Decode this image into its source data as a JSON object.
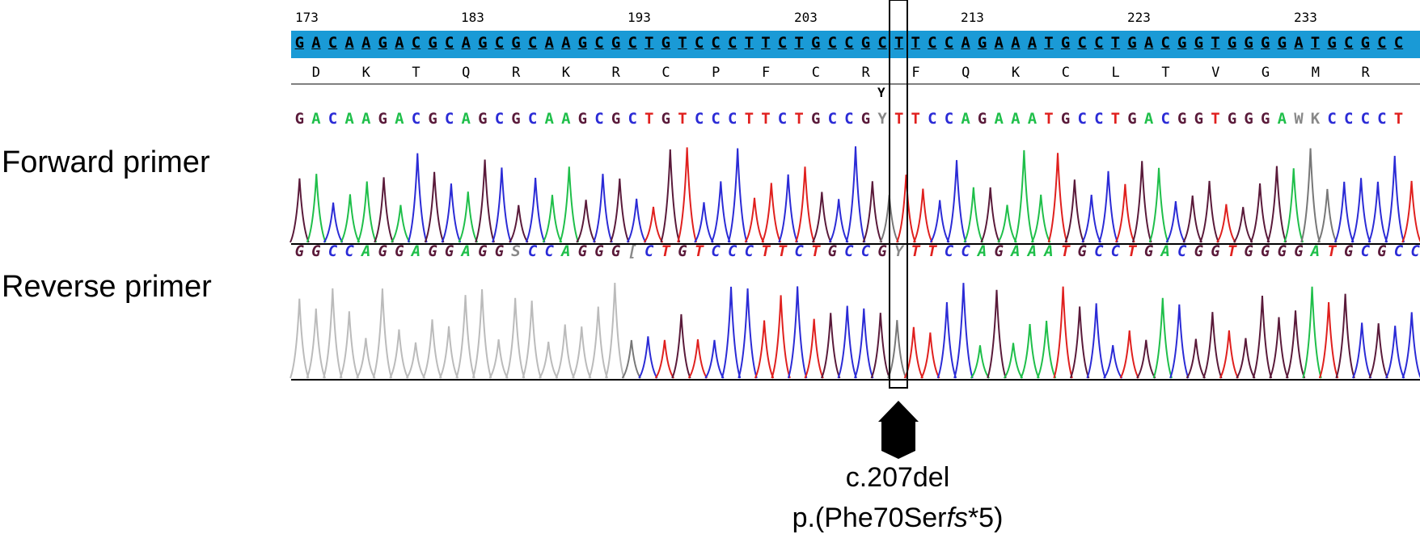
{
  "ruler": {
    "positions": [
      "173",
      "183",
      "193",
      "203",
      "213",
      "223",
      "233"
    ]
  },
  "reference": {
    "sequence": "GACAAGACGCAGCGCAAGCGCTGTCCCTTCTGCCGCTTCCAGAAATGCCTGACGGTGGGGATGCGCC",
    "amino_acids": [
      "D",
      "K",
      "T",
      "Q",
      "R",
      "K",
      "R",
      "C",
      "P",
      "F",
      "C",
      "R",
      "F",
      "Q",
      "K",
      "C",
      "L",
      "T",
      "V",
      "G",
      "M",
      "R"
    ]
  },
  "forward": {
    "label": "Forward primer",
    "call_marker": "Y",
    "sequence": "GACAAGACGCAGCGCAAGCGCTGTCCCTTCTGCCGYTTCCAGAAATGCCTGACGGTGGGAWKCCCCT"
  },
  "reverse": {
    "label": "Reverse primer",
    "sequence": "GGCCAGGAGGAGGSCCAGGG[CTGTCCCTTCTGCCGYTTCCAGAAATGCCTGACGGTGGGGATGCGCC"
  },
  "mutation": {
    "cdna": "c.207del",
    "protein_prefix": "p.(Phe70Ser",
    "protein_italic": "fs",
    "protein_suffix": "*5)"
  },
  "colors": {
    "A": "#1fbf4a",
    "C": "#2b2bd6",
    "G": "#5a1a3a",
    "T": "#e0201e",
    "ref_bar": "#1a9ad6",
    "arrow": "#000000"
  }
}
